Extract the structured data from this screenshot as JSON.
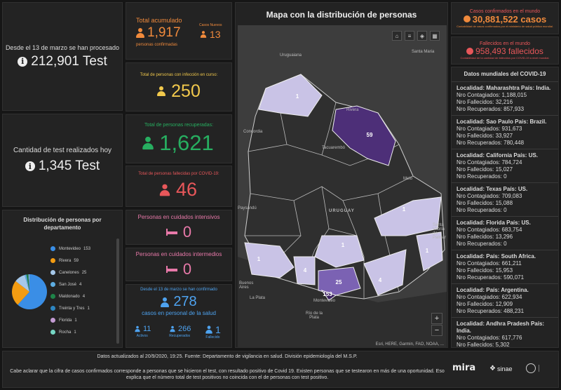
{
  "tests_total": {
    "label": "Desde el 13 de marzo se han procesado",
    "value": "212,901 Test"
  },
  "tests_today": {
    "label": "Cantidad de test realizados hoy",
    "value": "1,345 Test"
  },
  "departments": {
    "title": "Distribución de personas por departamento",
    "items": [
      {
        "name": "Montevideo",
        "value": "153",
        "color": "#3a8ee6"
      },
      {
        "name": "Rivera",
        "value": "59",
        "color": "#f39c12"
      },
      {
        "name": "Canelones",
        "value": "25",
        "color": "#a6c8ea"
      },
      {
        "name": "San José",
        "value": "4",
        "color": "#5dade2"
      },
      {
        "name": "Maldonado",
        "value": "4",
        "color": "#1e8449"
      },
      {
        "name": "Treinta y Tres",
        "value": "1",
        "color": "#2e86c1"
      },
      {
        "name": "Florida",
        "value": "1",
        "color": "#c39bd3"
      },
      {
        "name": "Rocha",
        "value": "1",
        "color": "#76d7c4"
      }
    ]
  },
  "total_acumulado": {
    "label": "Total acumulado",
    "value": "1,917",
    "sub": "personas confirmadas",
    "new_label": "Casos Nuevos",
    "new_value": "13"
  },
  "en_curso": {
    "label": "Total de personas con infección en curso:",
    "value": "250"
  },
  "recuperadas": {
    "label": "Total de personas recuperadas:",
    "value": "1,621"
  },
  "fallecidos": {
    "label": "Total de personas fallecidas por COVID-19:",
    "value": "46"
  },
  "intensivos": {
    "label": "Personas en cuidados intensivos",
    "value": "0"
  },
  "intermedios": {
    "label": "Personas en cuidados intermedios",
    "value": "0"
  },
  "salud": {
    "label": "Desde el 13 de marzo se han confirmado",
    "value": "278",
    "sub": "casos en personal de la salud",
    "activos_value": "11",
    "activos_label": "Activos",
    "recuperados_value": "266",
    "recuperados_label": "Recuperados",
    "fallecido_value": "1",
    "fallecido_label": "Fallecido"
  },
  "map": {
    "title": "Mapa con la distribución de personas",
    "attribution": "Esri, HERE, Garmin, FAO, NOAA, ...",
    "counts": [
      "1",
      "59",
      "1",
      "1",
      "1",
      "4",
      "25",
      "4",
      "153",
      "1"
    ],
    "places": [
      "Uruguaiana",
      "Santa Maria",
      "Rivera",
      "Concordia",
      "Tacuarembó",
      "Melo",
      "URUGUAY",
      "Paysandú",
      "Buenos Aires",
      "La Plata",
      "Montevideo",
      "Río de la Plata",
      "Santa Vitória do Palmar"
    ],
    "zoom_in": "+",
    "zoom_out": "−"
  },
  "world_cases": {
    "label": "Casos confirmados en el mundo",
    "value": "30,881,522 casos",
    "note": "Contabilidad de casos confirmados por el ministerio de salud pública mundial."
  },
  "world_deaths": {
    "label": "Fallecidos en el mundo",
    "value": "958,493 fallecidos",
    "note": "Contabilidad de la cantidad de fallecidos por COVID-19 a nivel mundial."
  },
  "world_data": {
    "title": "Datos mundiales del COVID-19",
    "rows": [
      {
        "loc": "Localidad: Maharashtra País: India.",
        "cont": "Nro Contagiados: 1,188,015",
        "fall": "Nro Fallecidos: 32,216",
        "rec": "Nro Recuperados: 857,933"
      },
      {
        "loc": "Localidad: Sao Paulo País: Brazil.",
        "cont": "Nro Contagiados: 931,673",
        "fall": "Nro Fallecidos: 33,927",
        "rec": "Nro Recuperados: 780,448"
      },
      {
        "loc": "Localidad: California País: US.",
        "cont": "Nro Contagiados: 784,724",
        "fall": "Nro Fallecidos: 15,027",
        "rec": "Nro Recuperados: 0"
      },
      {
        "loc": "Localidad: Texas País: US.",
        "cont": "Nro Contagiados: 709,083",
        "fall": "Nro Fallecidos: 15,088",
        "rec": "Nro Recuperados: 0"
      },
      {
        "loc": "Localidad: Florida País: US.",
        "cont": "Nro Contagiados: 683,754",
        "fall": "Nro Fallecidos: 13,296",
        "rec": "Nro Recuperados: 0"
      },
      {
        "loc": "Localidad:  País: South Africa.",
        "cont": "Nro Contagiados: 661,211",
        "fall": "Nro Fallecidos: 15,953",
        "rec": "Nro Recuperados: 590,071"
      },
      {
        "loc": "Localidad:  País: Argentina.",
        "cont": "Nro Contagiados: 622,934",
        "fall": "Nro Fallecidos: 12,909",
        "rec": "Nro Recuperados: 488,231"
      },
      {
        "loc": "Localidad: Andhra Pradesh País: India.",
        "cont": "Nro Contagiados: 617,776",
        "fall": "Nro Fallecidos: 5,302",
        "rec": ""
      }
    ]
  },
  "footer": {
    "updated": "Datos actualizados al 20/9/2020, 19:25. Fuente: Departamento de vigilancia en salud. División epidemiología del M.S.P.",
    "note": "Cabe aclarar que la cifra de casos confirmados corresponde a personas que se hicieron el test, con resultado positivo de Covid 19. Existen personas que se testearon en más de una oportunidad. Eso explica que el número total de test positivos no coincida con el de personas con test positivo.",
    "logo1": "mira",
    "logo2": "sinae"
  }
}
